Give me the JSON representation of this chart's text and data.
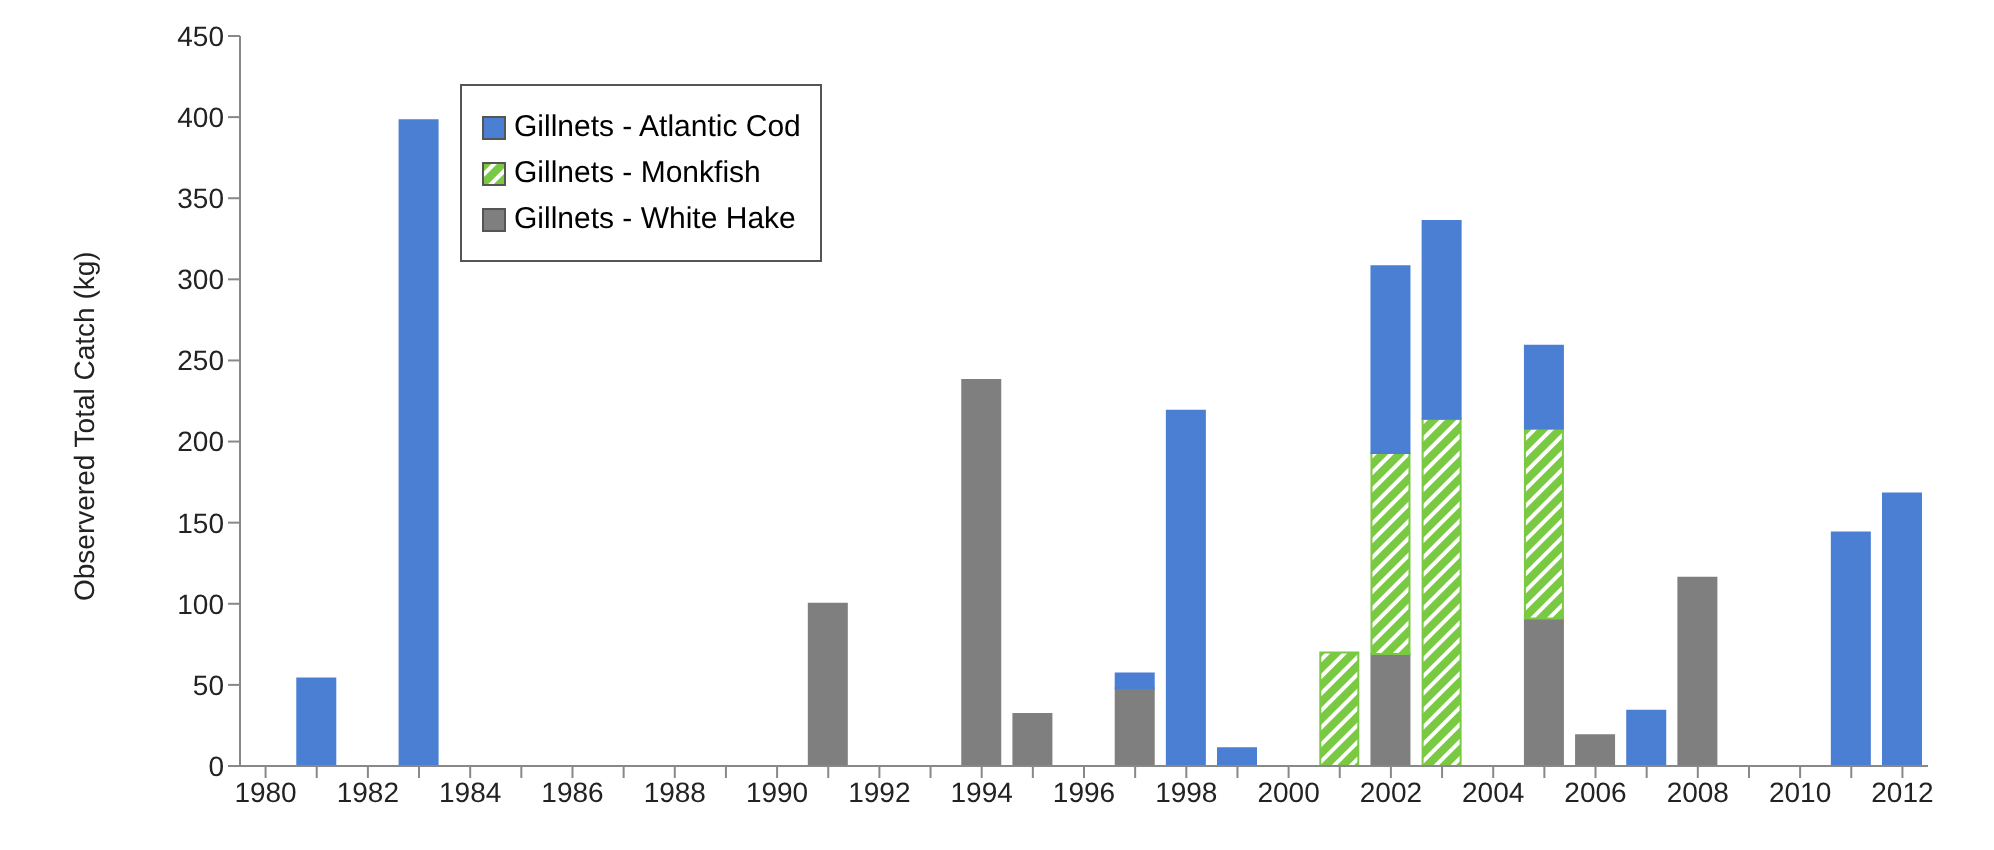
{
  "chart_data": {
    "type": "bar",
    "stacked": true,
    "ylabel": "Observered Total Catch (kg)",
    "categories": [
      "1980",
      null,
      "1982",
      null,
      "1984",
      null,
      "1986",
      null,
      "1988",
      null,
      "1990",
      null,
      "1992",
      null,
      "1994",
      null,
      "1996",
      null,
      "1998",
      null,
      "2000",
      null,
      "2002",
      null,
      "2004",
      null,
      "2006",
      null,
      "2008",
      null,
      "2010",
      null,
      "2012"
    ],
    "series": [
      {
        "name": "Gillnets - White Hake",
        "color": "#7f7f7f",
        "values": [
          null,
          null,
          null,
          null,
          null,
          null,
          null,
          null,
          null,
          null,
          null,
          100,
          null,
          null,
          238,
          32,
          null,
          48,
          null,
          null,
          null,
          null,
          69,
          null,
          null,
          91,
          19,
          null,
          116,
          null,
          null,
          null,
          null
        ]
      },
      {
        "name": "Gillnets - Monkfish",
        "color": "#7ac943",
        "values": [
          null,
          null,
          null,
          null,
          null,
          null,
          null,
          null,
          null,
          null,
          null,
          null,
          null,
          null,
          null,
          null,
          null,
          null,
          null,
          null,
          null,
          70,
          124,
          214,
          null,
          117,
          null,
          null,
          null,
          null,
          null,
          null,
          null
        ]
      },
      {
        "name": "Gillnets - Atlantic Cod",
        "color": "#4a7fd4",
        "values": [
          null,
          54,
          null,
          398,
          null,
          null,
          null,
          null,
          null,
          null,
          null,
          null,
          null,
          null,
          null,
          null,
          null,
          9,
          219,
          11,
          null,
          null,
          115,
          122,
          null,
          51,
          null,
          34,
          null,
          null,
          null,
          144,
          168
        ]
      }
    ],
    "ylim": [
      0,
      450
    ],
    "yticks": [
      0,
      50,
      100,
      150,
      200,
      250,
      300,
      350,
      400,
      450
    ],
    "grid": false,
    "legend": "top left"
  }
}
